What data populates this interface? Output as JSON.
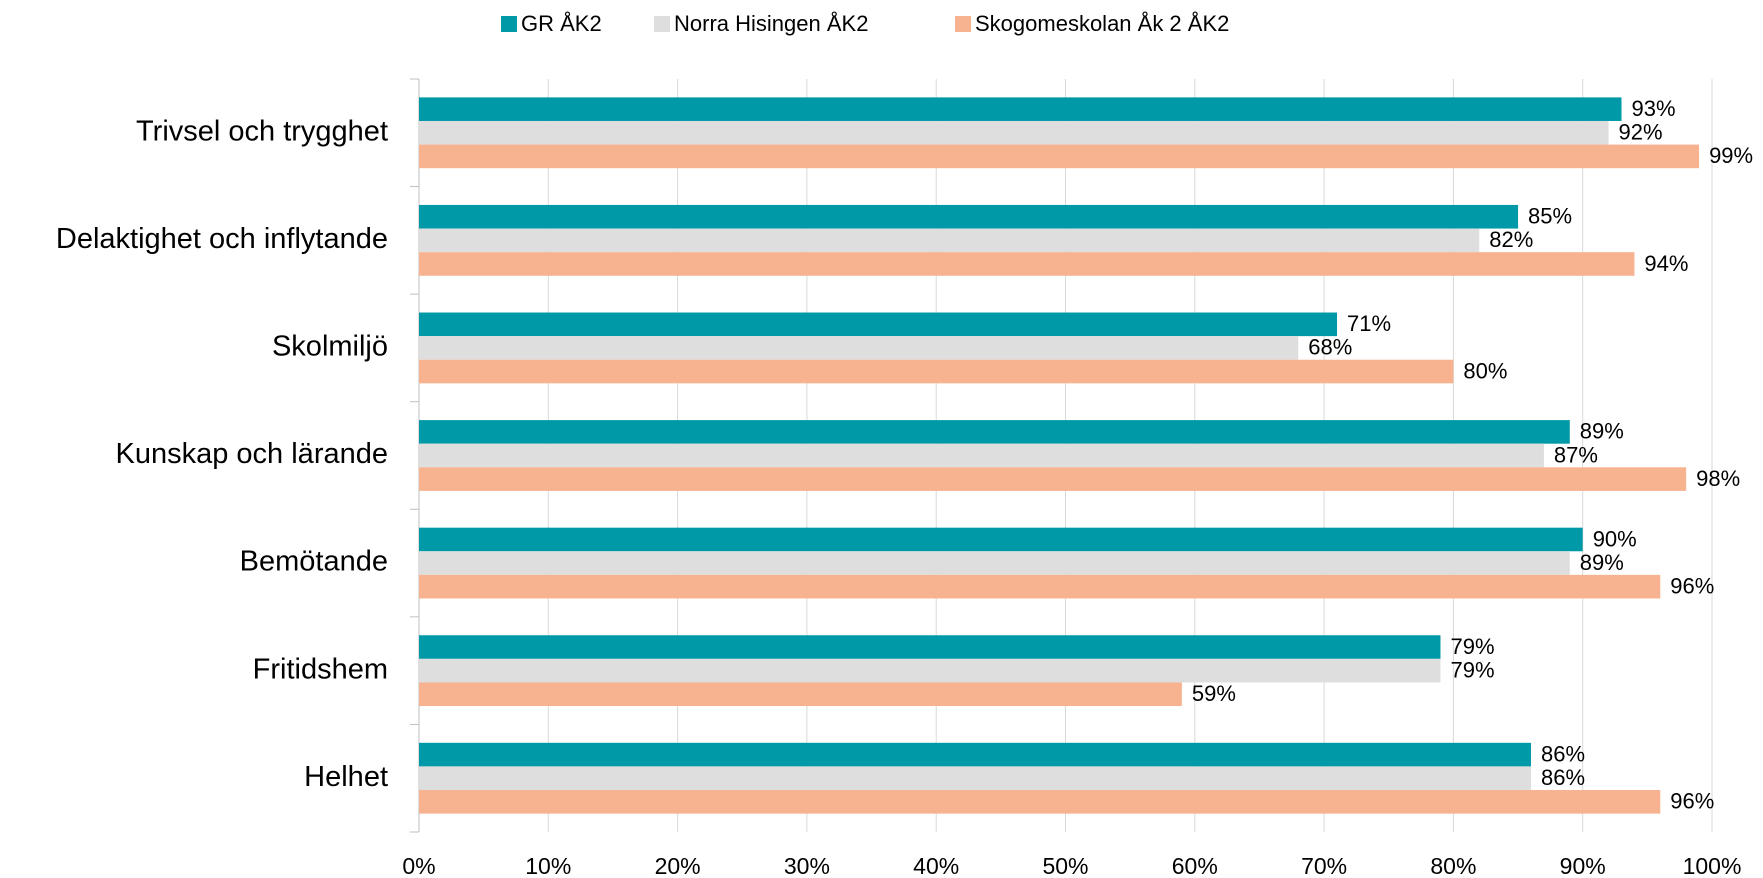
{
  "chart_data": {
    "type": "bar",
    "orientation": "horizontal",
    "categories": [
      "Trivsel och trygghet",
      "Delaktighet och inflytande",
      "Skolmiljö",
      "Kunskap och lärande",
      "Bemötande",
      "Fritidshem",
      "Helhet"
    ],
    "series": [
      {
        "name": "GR ÅK2",
        "color": "#0099a8",
        "values": [
          93,
          85,
          71,
          89,
          90,
          79,
          86
        ],
        "value_labels": [
          "93%",
          "85%",
          "71%",
          "89%",
          "90%",
          "79%",
          "86%"
        ]
      },
      {
        "name": "Norra Hisingen ÅK2",
        "color": "#dedede",
        "values": [
          92,
          82,
          68,
          87,
          89,
          79,
          86
        ],
        "value_labels": [
          "92%",
          "82%",
          "68%",
          "87%",
          "89%",
          "79%",
          "86%"
        ]
      },
      {
        "name": "Skogomeskolan Åk 2 ÅK2",
        "color": "#f7b38f",
        "values": [
          99,
          94,
          80,
          98,
          96,
          59,
          96
        ],
        "value_labels": [
          "99%",
          "94%",
          "80%",
          "98%",
          "96%",
          "59%",
          "96%"
        ]
      }
    ],
    "xlim": [
      0,
      100
    ],
    "xticks": [
      {
        "value": 0,
        "label": "0%"
      },
      {
        "value": 10,
        "label": "10%"
      },
      {
        "value": 20,
        "label": "20%"
      },
      {
        "value": 30,
        "label": "30%"
      },
      {
        "value": 40,
        "label": "40%"
      },
      {
        "value": 50,
        "label": "50%"
      },
      {
        "value": 60,
        "label": "60%"
      },
      {
        "value": 70,
        "label": "70%"
      },
      {
        "value": 80,
        "label": "80%"
      },
      {
        "value": 90,
        "label": "90%"
      },
      {
        "value": 100,
        "label": "100%"
      }
    ],
    "grid": true,
    "legend": "top"
  }
}
